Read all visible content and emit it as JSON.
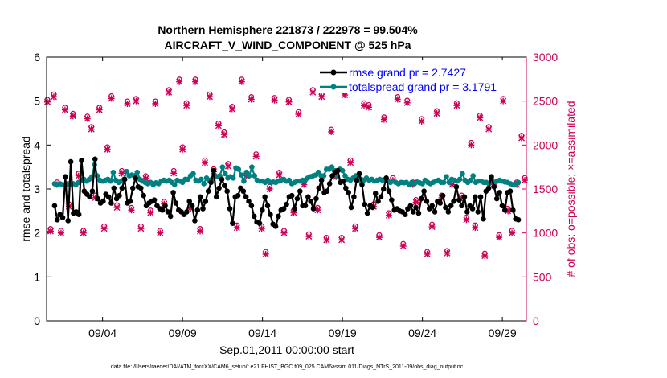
{
  "chart_data": {
    "type": "line",
    "title": [
      "Northern Hemisphere 221873 / 222978 = 99.504%",
      "AIRCRAFT_V_WIND_COMPONENT @ 525 hPa"
    ],
    "xlabel": "Sep.01,2011 00:00:00 start",
    "ylabel_left": "rmse and totalspread",
    "ylabel_right": "# of obs: o=possible; ×=assimilated",
    "footnote": "data file: /Users/raeder/DAI/ATM_forcXX/CAM6_setup/f.e21.FHIST_BGC.f09_025.CAM6assim.011/Diags_NTrS_2011-09/obs_diag_output.nc",
    "ylim_left": [
      0,
      6
    ],
    "ylim_right": [
      0,
      3000
    ],
    "xlim": [
      0.5,
      30.5
    ],
    "yticks_left": [
      "0",
      "1",
      "2",
      "3",
      "4",
      "5",
      "6"
    ],
    "yticks_right": [
      "0",
      "500",
      "1000",
      "1500",
      "2000",
      "2500",
      "3000"
    ],
    "xtick_positions": [
      4,
      9,
      14,
      19,
      24,
      29
    ],
    "xtick_labels": [
      "09/04",
      "09/09",
      "09/14",
      "09/19",
      "09/24",
      "09/29"
    ],
    "legend": [
      "rmse grand pr = 2.7427",
      "totalspread grand pr = 3.1791"
    ],
    "colors": {
      "rmse": "#000000",
      "spread": "#008080",
      "obs": "#cc0055",
      "legend_text": "#0000ff"
    },
    "rmse": [
      2.62,
      2.3,
      2.42,
      2.35,
      3.28,
      2.28,
      3.62,
      2.45,
      2.48,
      2.42,
      3.65,
      2.95,
      2.88,
      2.82,
      2.95,
      3.68,
      2.78,
      2.68,
      2.72,
      2.88,
      2.82,
      2.68,
      3.02,
      2.78,
      2.85,
      3.02,
      3.22,
      2.68,
      2.72,
      3.02,
      3.25,
      3.05,
      3.02,
      2.85,
      2.62,
      2.68,
      2.72,
      2.75,
      2.62,
      2.55,
      2.52,
      2.62,
      2.48,
      2.38,
      2.92,
      2.68,
      2.52,
      2.48,
      2.42,
      2.48,
      2.72,
      2.62,
      2.28,
      2.52,
      2.82,
      2.55,
      2.72,
      2.95,
      3.15,
      3.42,
      2.82,
      3.02,
      3.22,
      3.08,
      2.95,
      2.55,
      2.22,
      2.82,
      2.85,
      3.02,
      2.95,
      2.82,
      2.72,
      2.62,
      2.38,
      2.25,
      2.22,
      2.52,
      2.82,
      2.62,
      2.42,
      2.2,
      2.15,
      2.38,
      2.52,
      2.55,
      2.65,
      2.82,
      2.85,
      2.55,
      2.78,
      2.95,
      2.62,
      2.62,
      2.82,
      2.72,
      2.55,
      2.78,
      3.02,
      3.2,
      2.92,
      2.95,
      3.12,
      3.3,
      3.38,
      3.42,
      3.15,
      3.18,
      3.02,
      2.92,
      2.58,
      2.82,
      3.2,
      3.35,
      3.1,
      2.65,
      2.45,
      2.62,
      2.58,
      2.9,
      2.72,
      2.82,
      3.0,
      3.25,
      2.95,
      2.75,
      2.52,
      2.55,
      2.5,
      2.48,
      2.42,
      2.55,
      2.62,
      2.48,
      2.58,
      2.45,
      2.78,
      2.95,
      2.72,
      2.55,
      2.62,
      2.48,
      2.72,
      2.68,
      2.85,
      2.58,
      2.48,
      2.62,
      2.72,
      3.05,
      2.75,
      2.62,
      2.82,
      2.48,
      2.62,
      2.55,
      2.82,
      2.48,
      2.82,
      2.32,
      2.95,
      3.02,
      3.28,
      3.05,
      2.78,
      2.92,
      2.62,
      2.52,
      2.92,
      2.95,
      2.52,
      2.32,
      2.3
    ],
    "spread": [
      3.12,
      3.1,
      3.12,
      3.1,
      3.08,
      3.12,
      3.1,
      3.12,
      3.1,
      3.15,
      3.2,
      3.22,
      3.18,
      3.22,
      3.28,
      3.55,
      3.3,
      3.2,
      3.18,
      3.2,
      3.22,
      3.18,
      3.38,
      3.2,
      3.15,
      3.18,
      3.22,
      3.4,
      3.3,
      3.32,
      3.3,
      3.38,
      3.22,
      3.18,
      3.15,
      3.12,
      3.15,
      3.1,
      3.14,
      3.12,
      3.18,
      3.2,
      3.18,
      3.2,
      3.15,
      3.1,
      3.2,
      3.18,
      3.15,
      3.22,
      3.22,
      3.3,
      3.35,
      3.2,
      3.18,
      3.22,
      3.12,
      3.25,
      3.2,
      3.22,
      3.3,
      3.28,
      3.3,
      3.5,
      3.35,
      3.25,
      3.28,
      3.25,
      3.48,
      3.45,
      3.32,
      3.18,
      3.38,
      3.3,
      3.5,
      3.3,
      3.2,
      3.18,
      3.18,
      3.15,
      3.2,
      3.15,
      3.16,
      3.15,
      3.18,
      3.2,
      3.22,
      3.18,
      3.2,
      3.12,
      3.15,
      3.18,
      3.18,
      3.2,
      3.2,
      3.25,
      3.28,
      3.3,
      3.32,
      3.38,
      3.3,
      3.3,
      3.45,
      3.45,
      3.5,
      3.42,
      3.3,
      3.45,
      3.42,
      3.3,
      3.22,
      3.2,
      3.25,
      3.3,
      3.2,
      3.22,
      3.2,
      3.25,
      3.2,
      3.22,
      3.18,
      3.2,
      3.22,
      3.2,
      3.22,
      3.18,
      3.15,
      3.18,
      3.15,
      3.12,
      3.15,
      3.14,
      3.15,
      3.1,
      3.15,
      3.12,
      3.16,
      3.14,
      3.12,
      3.2,
      3.15,
      3.12,
      3.15,
      3.18,
      3.2,
      3.15,
      3.15,
      3.28,
      3.15,
      3.22,
      3.2,
      3.18,
      3.22,
      3.35,
      3.2,
      3.15,
      3.2,
      3.3,
      3.15,
      3.18,
      3.18,
      3.15,
      3.15,
      3.12,
      3.22,
      3.15,
      3.18,
      3.2,
      3.18,
      3.16,
      3.15,
      3.12,
      3.1,
      3.12,
      3.15
    ],
    "obs": [
      [
        0.55,
        2490
      ],
      [
        0.75,
        1020
      ],
      [
        0.95,
        2550
      ],
      [
        1.15,
        1550
      ],
      [
        1.4,
        1000
      ],
      [
        1.65,
        2400
      ],
      [
        1.9,
        1300
      ],
      [
        2.15,
        2330
      ],
      [
        2.5,
        1650
      ],
      [
        2.8,
        1000
      ],
      [
        3.05,
        2300
      ],
      [
        3.3,
        2180
      ],
      [
        3.55,
        1400
      ],
      [
        3.8,
        2400
      ],
      [
        4.1,
        1050
      ],
      [
        4.3,
        1950
      ],
      [
        4.55,
        2530
      ],
      [
        4.9,
        1290
      ],
      [
        5.2,
        1680
      ],
      [
        5.55,
        2470
      ],
      [
        5.8,
        1260
      ],
      [
        6.1,
        2500
      ],
      [
        6.4,
        1050
      ],
      [
        6.7,
        1620
      ],
      [
        7.0,
        1230
      ],
      [
        7.3,
        2470
      ],
      [
        7.6,
        1000
      ],
      [
        7.85,
        1330
      ],
      [
        8.15,
        2600
      ],
      [
        8.45,
        1680
      ],
      [
        8.8,
        2720
      ],
      [
        9.0,
        1950
      ],
      [
        9.25,
        2450
      ],
      [
        9.5,
        1280
      ],
      [
        9.8,
        2720
      ],
      [
        10.1,
        1020
      ],
      [
        10.4,
        1800
      ],
      [
        10.7,
        2550
      ],
      [
        10.95,
        1700
      ],
      [
        11.25,
        2220
      ],
      [
        11.6,
        2120
      ],
      [
        11.85,
        1760
      ],
      [
        12.1,
        2410
      ],
      [
        12.4,
        1060
      ],
      [
        12.7,
        2720
      ],
      [
        13.0,
        1650
      ],
      [
        13.3,
        2520
      ],
      [
        13.6,
        1870
      ],
      [
        13.95,
        1050
      ],
      [
        14.2,
        760
      ],
      [
        14.45,
        1500
      ],
      [
        14.75,
        2510
      ],
      [
        15.05,
        1660
      ],
      [
        15.35,
        1000
      ],
      [
        15.65,
        2490
      ],
      [
        15.95,
        1230
      ],
      [
        16.25,
        2350
      ],
      [
        16.6,
        1550
      ],
      [
        16.9,
        960
      ],
      [
        17.15,
        2600
      ],
      [
        17.45,
        1260
      ],
      [
        17.7,
        2550
      ],
      [
        18.0,
        920
      ],
      [
        18.3,
        2150
      ],
      [
        18.6,
        1640
      ],
      [
        18.95,
        920
      ],
      [
        19.15,
        2570
      ],
      [
        19.5,
        1800
      ],
      [
        19.8,
        1050
      ],
      [
        20.0,
        1630
      ],
      [
        20.35,
        2450
      ],
      [
        20.65,
        2430
      ],
      [
        20.95,
        1300
      ],
      [
        21.3,
        950
      ],
      [
        21.6,
        2290
      ],
      [
        21.9,
        1200
      ],
      [
        22.15,
        1600
      ],
      [
        22.45,
        2520
      ],
      [
        22.8,
        850
      ],
      [
        23.05,
        2480
      ],
      [
        23.4,
        1550
      ],
      [
        23.6,
        1350
      ],
      [
        23.95,
        2270
      ],
      [
        24.3,
        760
      ],
      [
        24.6,
        1070
      ],
      [
        24.9,
        2360
      ],
      [
        25.2,
        1400
      ],
      [
        25.55,
        770
      ],
      [
        25.85,
        1550
      ],
      [
        26.15,
        2450
      ],
      [
        26.45,
        1400
      ],
      [
        26.75,
        1150
      ],
      [
        27.05,
        2000
      ],
      [
        27.3,
        1060
      ],
      [
        27.6,
        2310
      ],
      [
        27.9,
        740
      ],
      [
        28.15,
        2180
      ],
      [
        28.45,
        1550
      ],
      [
        28.8,
        950
      ],
      [
        29.05,
        2500
      ],
      [
        29.35,
        1250
      ],
      [
        29.6,
        1000
      ],
      [
        29.9,
        1550
      ],
      [
        30.2,
        2080
      ],
      [
        30.4,
        1600
      ]
    ]
  }
}
